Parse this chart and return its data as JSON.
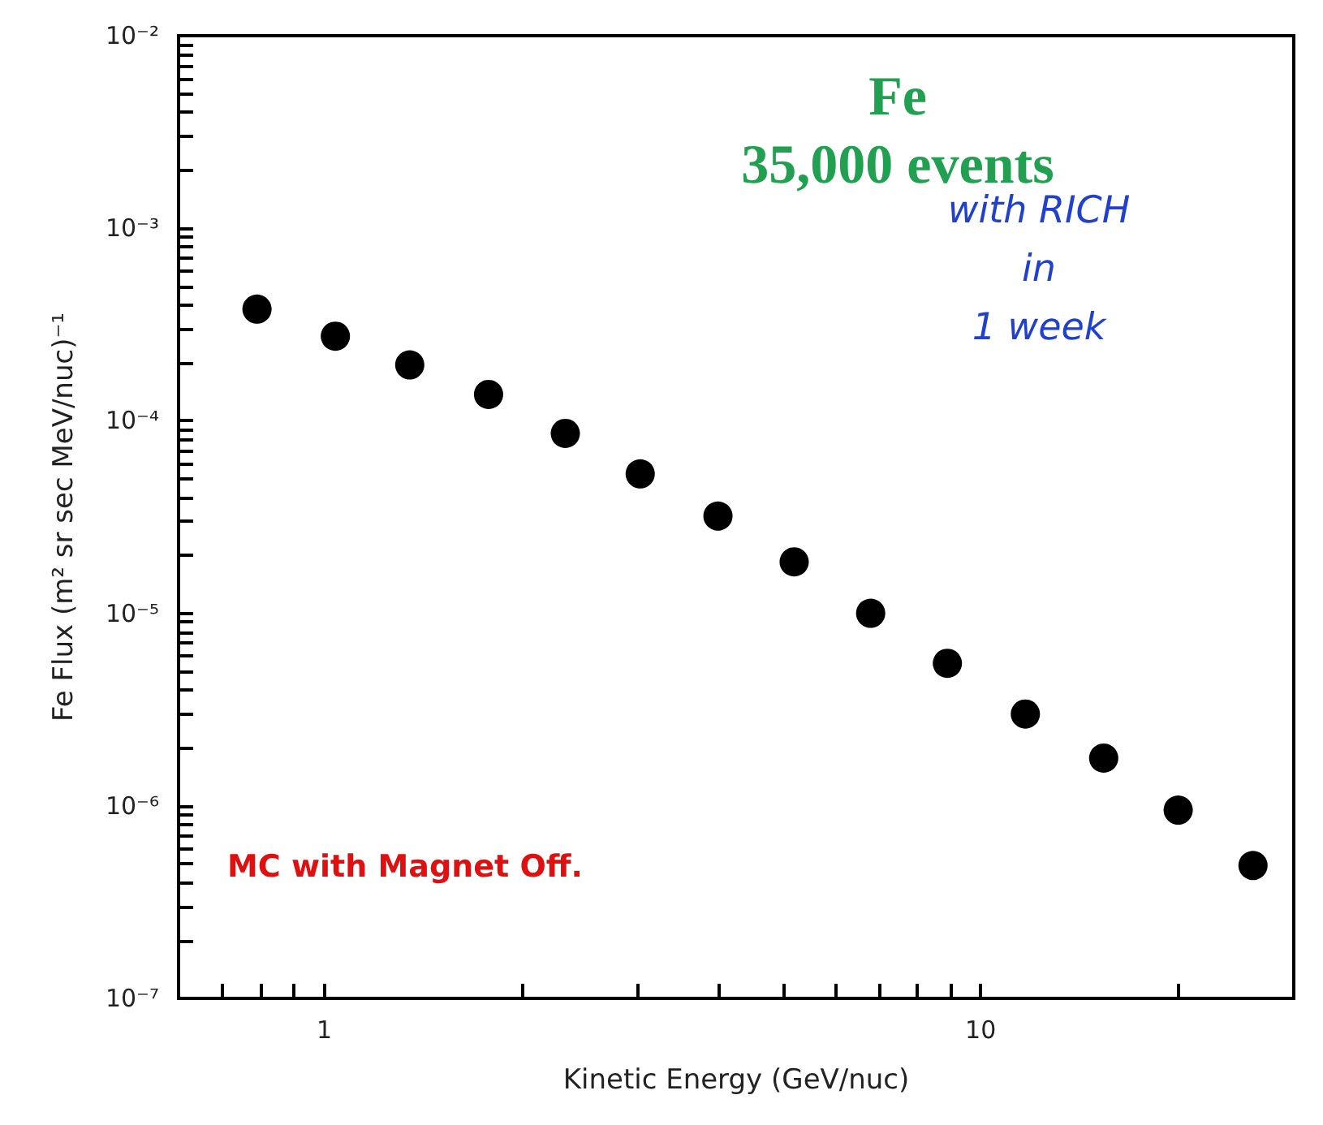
{
  "chart_data": {
    "type": "scatter",
    "title": "Fe",
    "subtitle": "35,000 events",
    "xlabel": "Kinetic Energy (GeV/nuc)",
    "ylabel": "Fe Flux (m² sr sec MeV/nuc)⁻¹",
    "annotations": [
      "with RICH\nin\n1 week",
      "MC with Magnet Off."
    ],
    "x": [
      0.79,
      1.04,
      1.35,
      1.78,
      2.33,
      3.03,
      3.98,
      5.2,
      6.8,
      8.9,
      11.7,
      15.4,
      20,
      26
    ],
    "series": [
      {
        "color": "#000000",
        "values": [
          0.00038,
          0.000275,
          0.000195,
          0.000137,
          8.6e-05,
          5.3e-05,
          3.2e-05,
          1.85e-05,
          1e-05,
          5.5e-06,
          3e-06,
          1.77e-06,
          9.5e-07,
          4.9e-07
        ]
      }
    ],
    "log": "xy",
    "xlim": [
      0.6,
      30
    ],
    "ylim": [
      1e-07,
      0.01
    ],
    "xticks": [
      {
        "value": 0.7,
        "label": null
      },
      {
        "value": 0.8,
        "label": null
      },
      {
        "value": 0.9,
        "label": null
      },
      1,
      {
        "value": 2,
        "label": null
      },
      {
        "value": 3,
        "label": null
      },
      {
        "value": 4,
        "label": null
      },
      {
        "value": 5,
        "label": null
      },
      {
        "value": 6,
        "label": null
      },
      {
        "value": 7,
        "label": null
      },
      {
        "value": 8,
        "label": null
      },
      {
        "value": 9,
        "label": null
      },
      10,
      {
        "value": 20,
        "label": null
      }
    ],
    "yticks": [
      {
        "value": 1e-07,
        "label": "10⁻⁷"
      },
      {
        "value": 2e-07,
        "label": null
      },
      {
        "value": 3e-07,
        "label": null
      },
      {
        "value": 4e-07,
        "label": null
      },
      {
        "value": 5e-07,
        "label": null
      },
      {
        "value": 6e-07,
        "label": null
      },
      {
        "value": 7e-07,
        "label": null
      },
      {
        "value": 8e-07,
        "label": null
      },
      {
        "value": 9e-07,
        "label": null
      },
      {
        "value": 1e-06,
        "label": "10⁻⁶"
      },
      {
        "value": 2e-06,
        "label": null
      },
      {
        "value": 3e-06,
        "label": null
      },
      {
        "value": 4e-06,
        "label": null
      },
      {
        "value": 5e-06,
        "label": null
      },
      {
        "value": 6e-06,
        "label": null
      },
      {
        "value": 7e-06,
        "label": null
      },
      {
        "value": 8e-06,
        "label": null
      },
      {
        "value": 9e-06,
        "label": null
      },
      {
        "value": 1e-05,
        "label": "10⁻⁵"
      },
      {
        "value": 2e-05,
        "label": null
      },
      {
        "value": 3e-05,
        "label": null
      },
      {
        "value": 4e-05,
        "label": null
      },
      {
        "value": 5e-05,
        "label": null
      },
      {
        "value": 6e-05,
        "label": null
      },
      {
        "value": 7e-05,
        "label": null
      },
      {
        "value": 8e-05,
        "label": null
      },
      {
        "value": 9e-05,
        "label": null
      },
      {
        "value": 0.0001,
        "label": "10⁻⁴"
      },
      {
        "value": 0.0002,
        "label": null
      },
      {
        "value": 0.0003,
        "label": null
      },
      {
        "value": 0.0004,
        "label": null
      },
      {
        "value": 0.0005,
        "label": null
      },
      {
        "value": 0.0006,
        "label": null
      },
      {
        "value": 0.0007,
        "label": null
      },
      {
        "value": 0.0008,
        "label": null
      },
      {
        "value": 0.0009,
        "label": null
      },
      {
        "value": 0.001,
        "label": "10⁻³"
      },
      {
        "value": 0.002,
        "label": null
      },
      {
        "value": 0.003,
        "label": null
      },
      {
        "value": 0.004,
        "label": null
      },
      {
        "value": 0.005,
        "label": null
      },
      {
        "value": 0.006,
        "label": null
      },
      {
        "value": 0.007,
        "label": null
      },
      {
        "value": 0.008,
        "label": null
      },
      {
        "value": 0.009,
        "label": null
      },
      {
        "value": 0.01,
        "label": "10⁻²"
      }
    ],
    "grid": false,
    "marker": "circle"
  }
}
